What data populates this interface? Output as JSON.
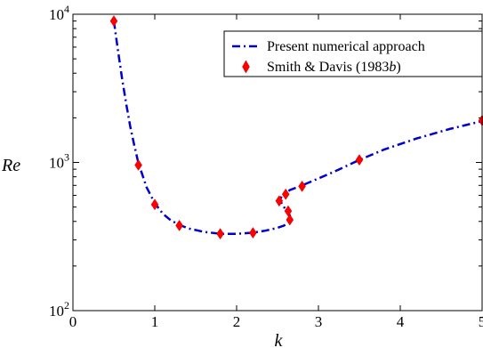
{
  "chart_data": {
    "type": "line",
    "xlabel": "k",
    "ylabel": "Re",
    "xlim": [
      0,
      5
    ],
    "ylim": [
      100,
      10000
    ],
    "y_scale": "log",
    "x_ticks": [
      "0",
      "1",
      "2",
      "3",
      "4",
      "5"
    ],
    "y_ticks": [
      {
        "value": 100,
        "base": "10",
        "exp": "2"
      },
      {
        "value": 1000,
        "base": "10",
        "exp": "3"
      },
      {
        "value": 10000,
        "base": "10",
        "exp": "4"
      }
    ],
    "grid": false,
    "legend_position": "top-right",
    "series": [
      {
        "name": "Present numerical approach",
        "style": "dash-dot",
        "color": "#0000cc",
        "x": [
          0.5,
          0.55,
          0.6,
          0.65,
          0.7,
          0.75,
          0.8,
          0.9,
          1.0,
          1.1,
          1.2,
          1.3,
          1.4,
          1.6,
          1.8,
          2.0,
          2.2,
          2.35,
          2.5,
          2.58,
          2.63,
          2.66,
          2.65,
          2.6,
          2.55,
          2.53,
          2.55,
          2.6,
          2.65,
          2.8,
          3.0,
          3.2,
          3.5,
          3.8,
          4.2,
          4.6,
          5.0
        ],
        "y": [
          9000,
          5700,
          3700,
          2500,
          1750,
          1300,
          990,
          680,
          530,
          450,
          405,
          380,
          360,
          340,
          330,
          330,
          336,
          346,
          362,
          375,
          395,
          410,
          440,
          480,
          530,
          560,
          590,
          620,
          650,
          700,
          780,
          870,
          1040,
          1220,
          1450,
          1680,
          1900
        ]
      },
      {
        "name": "Smith & Davis (1983b)",
        "style": "marker",
        "color": "#ff0000",
        "x": [
          0.5,
          0.8,
          1.0,
          1.3,
          1.8,
          2.2,
          2.52,
          2.6,
          2.63,
          2.65,
          2.8,
          3.5,
          5.0
        ],
        "y": [
          9000,
          960,
          520,
          375,
          330,
          335,
          550,
          610,
          470,
          410,
          690,
          1040,
          1920
        ]
      }
    ],
    "legend": {
      "entries": [
        {
          "label": "Present numerical approach",
          "series": 0
        },
        {
          "label_prefix": "Smith & Davis (1983",
          "label_italic": "b",
          "label_suffix": ")",
          "series": 1
        }
      ]
    }
  }
}
